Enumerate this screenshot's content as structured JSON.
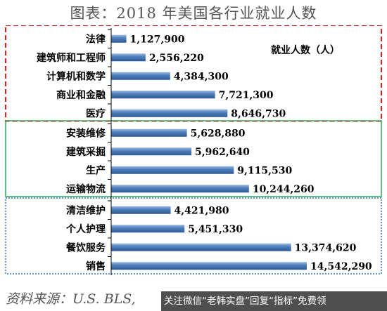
{
  "title": "图表：2018 年美国各行业就业人数",
  "source": "资料来源：U.S. BLS,",
  "watermark": "关注微信“老韩实盘”回复“指标”免费领",
  "colors": {
    "bar_top": "#9ab8e0",
    "bar_mid": "#4f81bd",
    "bar_bottom": "#2e5a95",
    "group1_border": "#e02020",
    "group2_border": "#2aa55a",
    "group3_border": "#2f6fbf",
    "title_color": "#555555"
  },
  "chart_data": {
    "type": "bar",
    "orientation": "horizontal",
    "legend": "就业人数（人）",
    "categories": [
      "法律",
      "建筑师和工程师",
      "计算机和数学",
      "商业和金融",
      "医疗",
      "安装维修",
      "建筑采掘",
      "生产",
      "运输物流",
      "清洁维护",
      "个人护理",
      "餐饮服务",
      "销售"
    ],
    "values": [
      1127900,
      2556220,
      4384300,
      7721300,
      8646730,
      5628880,
      5962640,
      9115530,
      10244260,
      4421980,
      5451330,
      13374620,
      14542290
    ],
    "value_labels": [
      "1,127,900",
      "2,556,220",
      "4,384,300",
      "7,721,300",
      "8,646,730",
      "5,628,880",
      "5,962,640",
      "9,115,530",
      "10,244,260",
      "4,421,980",
      "5,451,330",
      "13,374,620",
      "14,542,290"
    ],
    "groups": [
      {
        "start": 0,
        "end": 4,
        "border": "dashed",
        "color": "#e02020"
      },
      {
        "start": 5,
        "end": 8,
        "border": "solid",
        "color": "#2aa55a"
      },
      {
        "start": 9,
        "end": 12,
        "border": "dotted",
        "color": "#2f6fbf"
      }
    ],
    "xlim": [
      0,
      14542290
    ]
  }
}
